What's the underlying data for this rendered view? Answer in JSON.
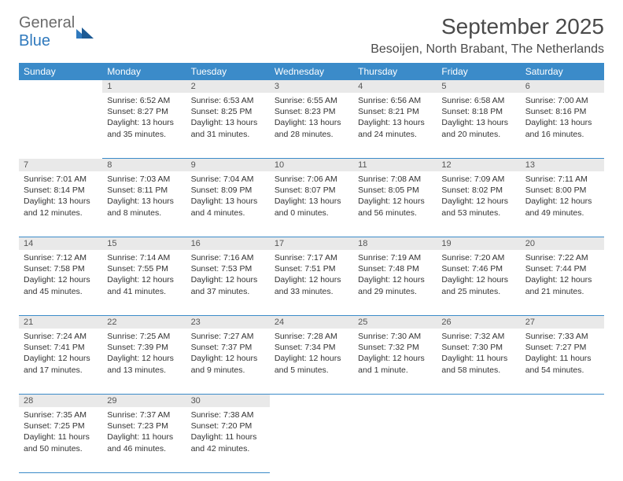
{
  "logo": {
    "general": "General",
    "blue": "Blue"
  },
  "header": {
    "month": "September 2025",
    "location": "Besoijen, North Brabant, The Netherlands"
  },
  "colors": {
    "header_bg": "#3b8bc9",
    "header_text": "#ffffff",
    "daynum_bg": "#e9e9e9",
    "border": "#3b8bc9",
    "logo_gray": "#6b6b6b",
    "logo_blue": "#2f79bd"
  },
  "days": [
    "Sunday",
    "Monday",
    "Tuesday",
    "Wednesday",
    "Thursday",
    "Friday",
    "Saturday"
  ],
  "weeks": [
    [
      {
        "n": "",
        "l": []
      },
      {
        "n": "1",
        "l": [
          "Sunrise: 6:52 AM",
          "Sunset: 8:27 PM",
          "Daylight: 13 hours",
          "and 35 minutes."
        ]
      },
      {
        "n": "2",
        "l": [
          "Sunrise: 6:53 AM",
          "Sunset: 8:25 PM",
          "Daylight: 13 hours",
          "and 31 minutes."
        ]
      },
      {
        "n": "3",
        "l": [
          "Sunrise: 6:55 AM",
          "Sunset: 8:23 PM",
          "Daylight: 13 hours",
          "and 28 minutes."
        ]
      },
      {
        "n": "4",
        "l": [
          "Sunrise: 6:56 AM",
          "Sunset: 8:21 PM",
          "Daylight: 13 hours",
          "and 24 minutes."
        ]
      },
      {
        "n": "5",
        "l": [
          "Sunrise: 6:58 AM",
          "Sunset: 8:18 PM",
          "Daylight: 13 hours",
          "and 20 minutes."
        ]
      },
      {
        "n": "6",
        "l": [
          "Sunrise: 7:00 AM",
          "Sunset: 8:16 PM",
          "Daylight: 13 hours",
          "and 16 minutes."
        ]
      }
    ],
    [
      {
        "n": "7",
        "l": [
          "Sunrise: 7:01 AM",
          "Sunset: 8:14 PM",
          "Daylight: 13 hours",
          "and 12 minutes."
        ]
      },
      {
        "n": "8",
        "l": [
          "Sunrise: 7:03 AM",
          "Sunset: 8:11 PM",
          "Daylight: 13 hours",
          "and 8 minutes."
        ]
      },
      {
        "n": "9",
        "l": [
          "Sunrise: 7:04 AM",
          "Sunset: 8:09 PM",
          "Daylight: 13 hours",
          "and 4 minutes."
        ]
      },
      {
        "n": "10",
        "l": [
          "Sunrise: 7:06 AM",
          "Sunset: 8:07 PM",
          "Daylight: 13 hours",
          "and 0 minutes."
        ]
      },
      {
        "n": "11",
        "l": [
          "Sunrise: 7:08 AM",
          "Sunset: 8:05 PM",
          "Daylight: 12 hours",
          "and 56 minutes."
        ]
      },
      {
        "n": "12",
        "l": [
          "Sunrise: 7:09 AM",
          "Sunset: 8:02 PM",
          "Daylight: 12 hours",
          "and 53 minutes."
        ]
      },
      {
        "n": "13",
        "l": [
          "Sunrise: 7:11 AM",
          "Sunset: 8:00 PM",
          "Daylight: 12 hours",
          "and 49 minutes."
        ]
      }
    ],
    [
      {
        "n": "14",
        "l": [
          "Sunrise: 7:12 AM",
          "Sunset: 7:58 PM",
          "Daylight: 12 hours",
          "and 45 minutes."
        ]
      },
      {
        "n": "15",
        "l": [
          "Sunrise: 7:14 AM",
          "Sunset: 7:55 PM",
          "Daylight: 12 hours",
          "and 41 minutes."
        ]
      },
      {
        "n": "16",
        "l": [
          "Sunrise: 7:16 AM",
          "Sunset: 7:53 PM",
          "Daylight: 12 hours",
          "and 37 minutes."
        ]
      },
      {
        "n": "17",
        "l": [
          "Sunrise: 7:17 AM",
          "Sunset: 7:51 PM",
          "Daylight: 12 hours",
          "and 33 minutes."
        ]
      },
      {
        "n": "18",
        "l": [
          "Sunrise: 7:19 AM",
          "Sunset: 7:48 PM",
          "Daylight: 12 hours",
          "and 29 minutes."
        ]
      },
      {
        "n": "19",
        "l": [
          "Sunrise: 7:20 AM",
          "Sunset: 7:46 PM",
          "Daylight: 12 hours",
          "and 25 minutes."
        ]
      },
      {
        "n": "20",
        "l": [
          "Sunrise: 7:22 AM",
          "Sunset: 7:44 PM",
          "Daylight: 12 hours",
          "and 21 minutes."
        ]
      }
    ],
    [
      {
        "n": "21",
        "l": [
          "Sunrise: 7:24 AM",
          "Sunset: 7:41 PM",
          "Daylight: 12 hours",
          "and 17 minutes."
        ]
      },
      {
        "n": "22",
        "l": [
          "Sunrise: 7:25 AM",
          "Sunset: 7:39 PM",
          "Daylight: 12 hours",
          "and 13 minutes."
        ]
      },
      {
        "n": "23",
        "l": [
          "Sunrise: 7:27 AM",
          "Sunset: 7:37 PM",
          "Daylight: 12 hours",
          "and 9 minutes."
        ]
      },
      {
        "n": "24",
        "l": [
          "Sunrise: 7:28 AM",
          "Sunset: 7:34 PM",
          "Daylight: 12 hours",
          "and 5 minutes."
        ]
      },
      {
        "n": "25",
        "l": [
          "Sunrise: 7:30 AM",
          "Sunset: 7:32 PM",
          "Daylight: 12 hours",
          "and 1 minute."
        ]
      },
      {
        "n": "26",
        "l": [
          "Sunrise: 7:32 AM",
          "Sunset: 7:30 PM",
          "Daylight: 11 hours",
          "and 58 minutes."
        ]
      },
      {
        "n": "27",
        "l": [
          "Sunrise: 7:33 AM",
          "Sunset: 7:27 PM",
          "Daylight: 11 hours",
          "and 54 minutes."
        ]
      }
    ],
    [
      {
        "n": "28",
        "l": [
          "Sunrise: 7:35 AM",
          "Sunset: 7:25 PM",
          "Daylight: 11 hours",
          "and 50 minutes."
        ]
      },
      {
        "n": "29",
        "l": [
          "Sunrise: 7:37 AM",
          "Sunset: 7:23 PM",
          "Daylight: 11 hours",
          "and 46 minutes."
        ]
      },
      {
        "n": "30",
        "l": [
          "Sunrise: 7:38 AM",
          "Sunset: 7:20 PM",
          "Daylight: 11 hours",
          "and 42 minutes."
        ]
      },
      {
        "n": "",
        "l": []
      },
      {
        "n": "",
        "l": []
      },
      {
        "n": "",
        "l": []
      },
      {
        "n": "",
        "l": []
      }
    ]
  ]
}
